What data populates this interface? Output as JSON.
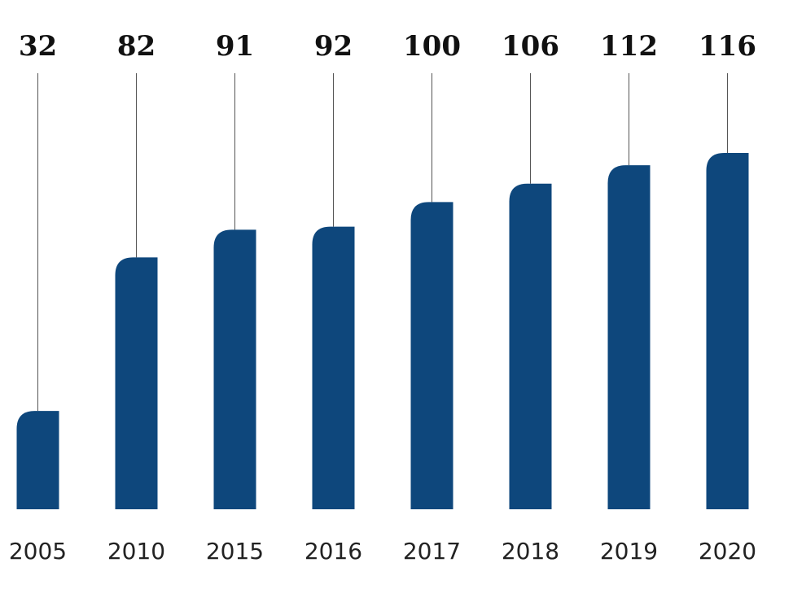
{
  "chart_data": {
    "type": "bar",
    "categories": [
      "2005",
      "2010",
      "2015",
      "2016",
      "2017",
      "2018",
      "2019",
      "2020"
    ],
    "values": [
      32,
      82,
      91,
      92,
      100,
      106,
      112,
      116
    ],
    "title": "",
    "xlabel": "",
    "ylabel": "",
    "ylim": [
      0,
      116
    ],
    "grid": false,
    "legend": "none",
    "colors": {
      "bar": "#0e477c",
      "leader": "#555555",
      "value_text": "#111111",
      "category_text": "#222222"
    }
  }
}
